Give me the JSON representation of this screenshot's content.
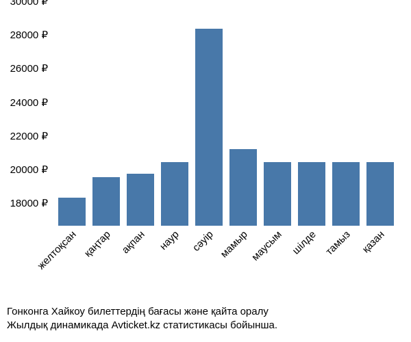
{
  "chart": {
    "type": "bar",
    "background_color": "#ffffff",
    "bar_color": "#4878a9",
    "text_color": "#000000",
    "tick_fontsize": 15,
    "caption_fontsize": 15,
    "ylim": [
      17400,
      30000
    ],
    "yticks": [
      {
        "v": 18000,
        "label": "18000 ₽"
      },
      {
        "v": 20000,
        "label": "20000 ₽"
      },
      {
        "v": 22000,
        "label": "22000 ₽"
      },
      {
        "v": 24000,
        "label": "24000 ₽"
      },
      {
        "v": 26000,
        "label": "26000 ₽"
      },
      {
        "v": 28000,
        "label": "28000 ₽"
      },
      {
        "v": 30000,
        "label": "30000 ₽"
      }
    ],
    "categories": [
      "желтоқсан",
      "қаңтар",
      "ақпан",
      "наур",
      "сәуір",
      "мамыр",
      "маусым",
      "шілде",
      "тамыз",
      "қазан"
    ],
    "values": [
      19050,
      20300,
      20500,
      21200,
      29100,
      21950,
      21200,
      21200,
      21200,
      21200
    ],
    "bar_width_ratio": 0.8,
    "caption_line1": "Гонконга Хайкоу билеттердің бағасы және қайта оралу",
    "caption_line2": "Жылдық динамикада Avticket.kz статистикасы бойынша."
  }
}
